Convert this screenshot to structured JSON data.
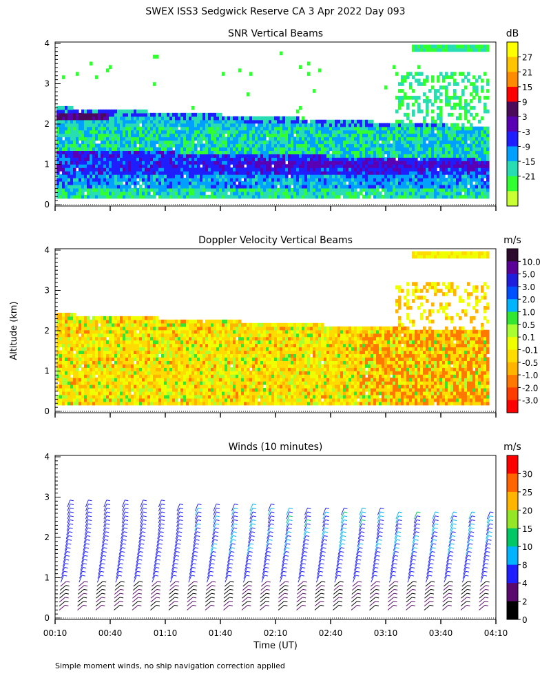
{
  "title": "SWEX ISS3 Sedgwick Reserve CA    3 Apr 2022 Day 093",
  "y_axis_label": "Altitude (km)",
  "x_axis_label": "Time (UT)",
  "footnote": "Simple moment winds, no ship navigation correction applied",
  "chart_data": [
    {
      "type": "heatmap",
      "title": "SNR Vertical Beams",
      "ylim": [
        0,
        4
      ],
      "yticks": [
        "0",
        "1",
        "2",
        "3",
        "4"
      ],
      "colorbar": {
        "unit": "dB",
        "labels": [
          "27",
          "21",
          "15",
          "9",
          "3",
          "-3",
          "-9",
          "-15",
          "-21"
        ],
        "colors": [
          "#ffff00",
          "#ffc400",
          "#ff8c00",
          "#ff0000",
          "#4b0a5a",
          "#5a00b4",
          "#1e1eff",
          "#00a0ff",
          "#28dcb4",
          "#32ff32",
          "#c8ff32"
        ]
      }
    },
    {
      "type": "heatmap",
      "title": "Doppler Velocity Vertical Beams",
      "ylim": [
        0,
        4
      ],
      "yticks": [
        "0",
        "1",
        "2",
        "3",
        "4"
      ],
      "colorbar": {
        "unit": "m/s",
        "labels": [
          "10.0",
          "5.0",
          "3.0",
          "2.0",
          "1.0",
          "0.5",
          "0.1",
          "-0.1",
          "-0.5",
          "-1.0",
          "-2.0",
          "-3.0"
        ],
        "colors": [
          "#2d0a2d",
          "#5a0096",
          "#1e1edc",
          "#0050ff",
          "#00b4ff",
          "#32e632",
          "#aaff32",
          "#f0ff00",
          "#ffdc00",
          "#ffb400",
          "#ff7800",
          "#ff3c00",
          "#ff0000"
        ]
      }
    },
    {
      "type": "barbs",
      "title": "Winds (10 minutes)",
      "ylim": [
        0,
        4
      ],
      "yticks": [
        "0",
        "1",
        "2",
        "3",
        "4"
      ],
      "xticks": [
        "00:10",
        "00:40",
        "01:10",
        "01:40",
        "02:10",
        "02:40",
        "03:10",
        "03:40",
        "04:10"
      ],
      "colorbar": {
        "unit": "m/s",
        "labels": [
          "30",
          "25",
          "20",
          "15",
          "10",
          "8",
          "4",
          "2",
          "0"
        ],
        "colors": [
          "#ff0000",
          "#ff6400",
          "#ffb400",
          "#96e628",
          "#00c864",
          "#00b4ff",
          "#1e1eff",
          "#5a0a6e",
          "#000000"
        ]
      }
    }
  ]
}
